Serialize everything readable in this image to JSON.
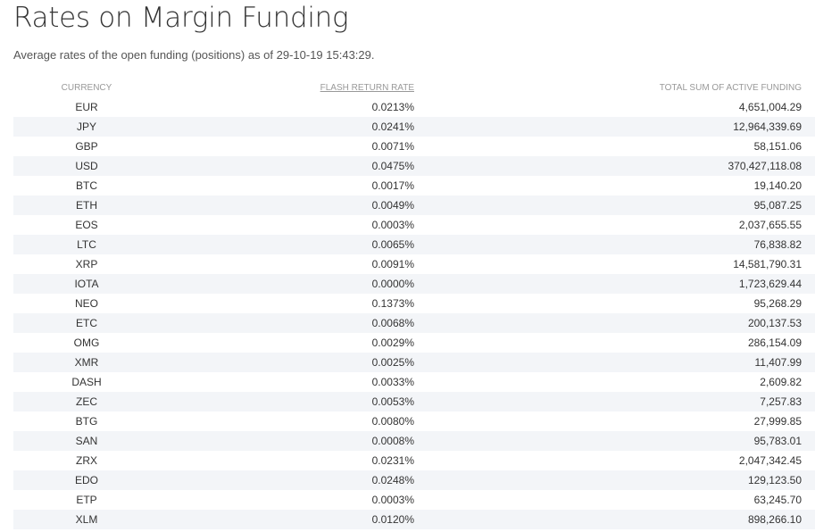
{
  "page": {
    "title": "Rates on Margin Funding",
    "subtitle": "Average rates of the open funding (positions) as of 29-10-19 15:43:29."
  },
  "table": {
    "headers": {
      "currency": "CURRENCY",
      "flash_return_rate": "FLASH RETURN RATE",
      "total_sum": "TOTAL SUM OF ACTIVE FUNDING"
    },
    "rows": [
      {
        "currency": "EUR",
        "rate": "0.0213%",
        "total": "4,651,004.29"
      },
      {
        "currency": "JPY",
        "rate": "0.0241%",
        "total": "12,964,339.69"
      },
      {
        "currency": "GBP",
        "rate": "0.0071%",
        "total": "58,151.06"
      },
      {
        "currency": "USD",
        "rate": "0.0475%",
        "total": "370,427,118.08"
      },
      {
        "currency": "BTC",
        "rate": "0.0017%",
        "total": "19,140.20"
      },
      {
        "currency": "ETH",
        "rate": "0.0049%",
        "total": "95,087.25"
      },
      {
        "currency": "EOS",
        "rate": "0.0003%",
        "total": "2,037,655.55"
      },
      {
        "currency": "LTC",
        "rate": "0.0065%",
        "total": "76,838.82"
      },
      {
        "currency": "XRP",
        "rate": "0.0091%",
        "total": "14,581,790.31"
      },
      {
        "currency": "IOTA",
        "rate": "0.0000%",
        "total": "1,723,629.44"
      },
      {
        "currency": "NEO",
        "rate": "0.1373%",
        "total": "95,268.29"
      },
      {
        "currency": "ETC",
        "rate": "0.0068%",
        "total": "200,137.53"
      },
      {
        "currency": "OMG",
        "rate": "0.0029%",
        "total": "286,154.09"
      },
      {
        "currency": "XMR",
        "rate": "0.0025%",
        "total": "11,407.99"
      },
      {
        "currency": "DASH",
        "rate": "0.0033%",
        "total": "2,609.82"
      },
      {
        "currency": "ZEC",
        "rate": "0.0053%",
        "total": "7,257.83"
      },
      {
        "currency": "BTG",
        "rate": "0.0080%",
        "total": "27,999.85"
      },
      {
        "currency": "SAN",
        "rate": "0.0008%",
        "total": "95,783.01"
      },
      {
        "currency": "ZRX",
        "rate": "0.0231%",
        "total": "2,047,342.45"
      },
      {
        "currency": "EDO",
        "rate": "0.0248%",
        "total": "129,123.50"
      },
      {
        "currency": "ETP",
        "rate": "0.0003%",
        "total": "63,245.70"
      },
      {
        "currency": "XLM",
        "rate": "0.0120%",
        "total": "898,266.10"
      }
    ]
  },
  "colors": {
    "text": "#333333",
    "header_text": "#999999",
    "stripe": "#f3f5f8",
    "background": "#ffffff"
  }
}
